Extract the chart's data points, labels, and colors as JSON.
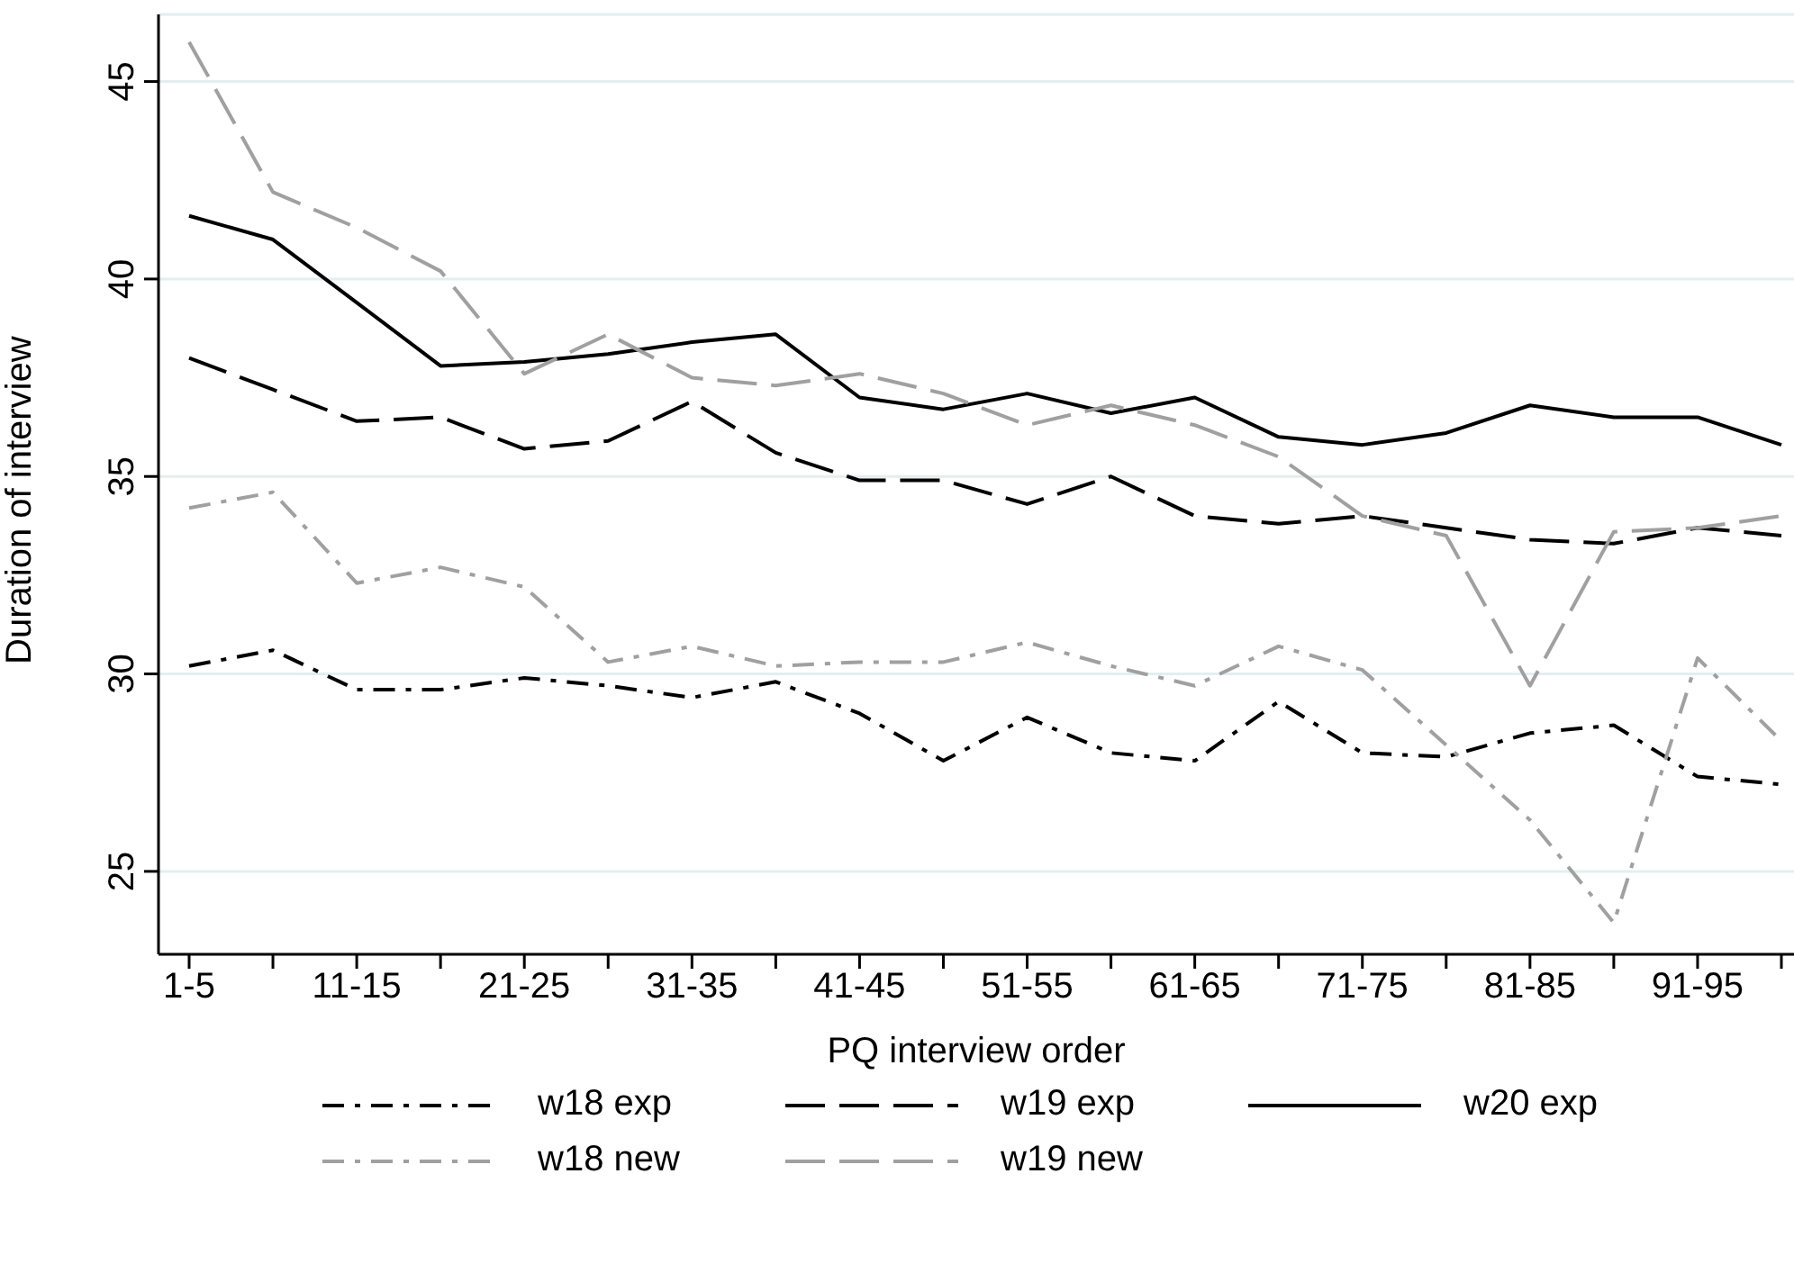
{
  "chart_data": {
    "type": "line",
    "xlabel": "PQ interview order",
    "ylabel": "Duration of interview",
    "categories": [
      "1-5",
      null,
      "11-15",
      null,
      "21-25",
      null,
      "31-35",
      null,
      "41-45",
      null,
      "51-55",
      null,
      "61-65",
      null,
      "71-75",
      null,
      "81-85",
      null,
      "91-95",
      null
    ],
    "ylim": [
      22.9,
      46.7
    ],
    "yticks": [
      25,
      30,
      35,
      40,
      45
    ],
    "grid": "y",
    "legend": "bottom",
    "marker": "none",
    "series": [
      {
        "name": "w18 exp",
        "color": "#000000",
        "line_style": "dashdot",
        "values": [
          30.2,
          30.6,
          29.6,
          29.6,
          29.9,
          29.7,
          29.4,
          29.8,
          29.0,
          27.8,
          28.9,
          28.0,
          27.8,
          29.3,
          28.0,
          27.9,
          28.5,
          28.7,
          27.4,
          27.2
        ]
      },
      {
        "name": "w19 exp",
        "color": "#000000",
        "line_style": "dashed",
        "values": [
          38.0,
          37.2,
          36.4,
          36.5,
          35.7,
          35.9,
          36.9,
          35.6,
          34.9,
          34.9,
          34.3,
          35.0,
          34.0,
          33.8,
          34.0,
          33.7,
          33.4,
          33.3,
          33.7,
          33.5
        ]
      },
      {
        "name": "w20 exp",
        "color": "#000000",
        "line_style": "solid",
        "values": [
          41.6,
          41.0,
          39.4,
          37.8,
          37.9,
          38.1,
          38.4,
          38.6,
          37.0,
          36.7,
          37.1,
          36.6,
          37.0,
          36.0,
          35.8,
          36.1,
          36.8,
          36.5,
          36.5,
          35.8
        ]
      },
      {
        "name": "w18 new",
        "color": "#a0a0a0",
        "line_style": "dashdot",
        "values": [
          34.2,
          34.6,
          32.3,
          32.7,
          32.2,
          30.3,
          30.7,
          30.2,
          30.3,
          30.3,
          30.8,
          30.2,
          29.7,
          30.7,
          30.1,
          28.2,
          26.3,
          23.7,
          30.4,
          28.3
        ]
      },
      {
        "name": "w19 new",
        "color": "#a0a0a0",
        "line_style": "dashed",
        "values": [
          46.0,
          42.2,
          41.3,
          40.2,
          37.6,
          38.6,
          37.5,
          37.3,
          37.6,
          37.1,
          36.3,
          36.8,
          36.3,
          35.5,
          34.0,
          33.5,
          29.7,
          33.6,
          33.7,
          34.0
        ]
      }
    ]
  }
}
